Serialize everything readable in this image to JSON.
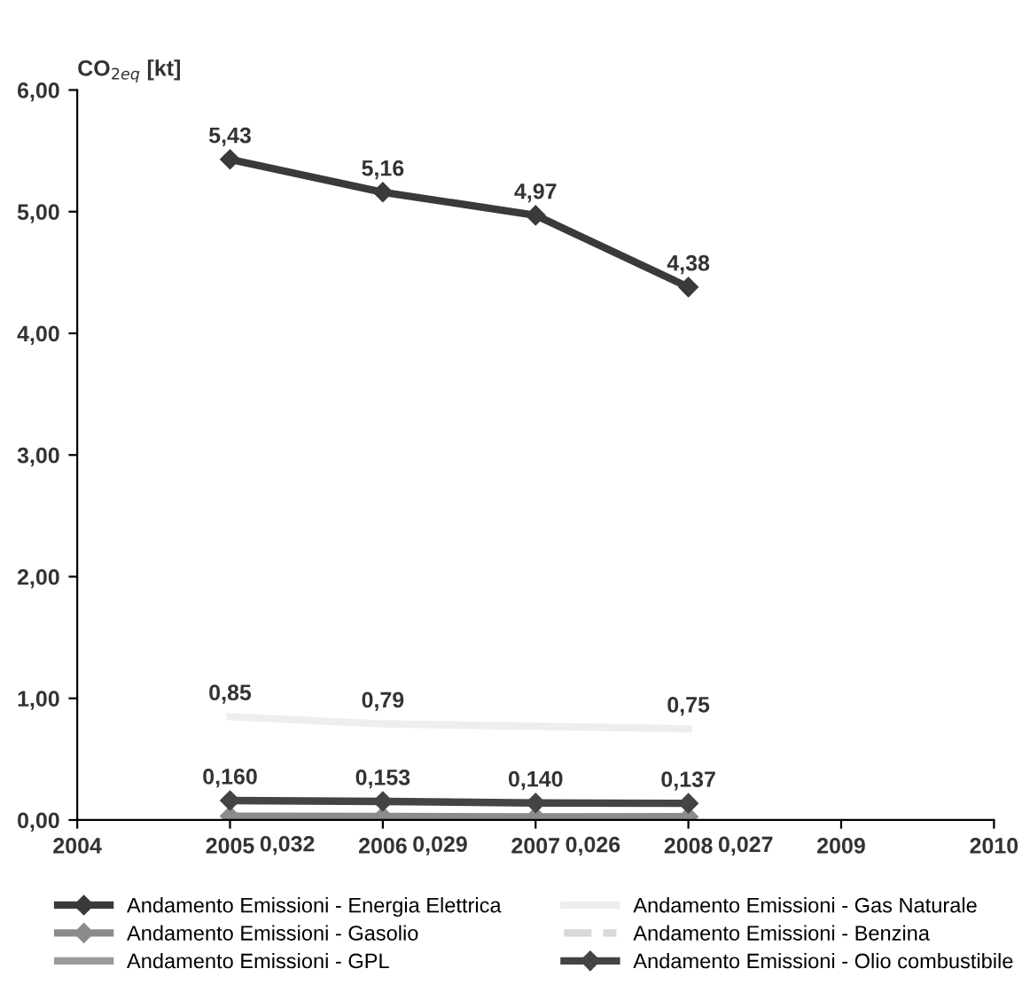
{
  "chart_data": {
    "type": "line",
    "ylabel": "CO$_{2eq}$ [kt]",
    "x": [
      2005,
      2006,
      2007,
      2008
    ],
    "xlim": [
      2004,
      2010
    ],
    "xticks": [
      2004,
      2005,
      2006,
      2007,
      2008,
      2009,
      2010
    ],
    "ylim": [
      0,
      6
    ],
    "yticks": [
      {
        "value": 0,
        "label": "0,00"
      },
      {
        "value": 1,
        "label": "1,00"
      },
      {
        "value": 2,
        "label": "2,00"
      },
      {
        "value": 3,
        "label": "3,00"
      },
      {
        "value": 4,
        "label": "4,00"
      },
      {
        "value": 5,
        "label": "5,00"
      },
      {
        "value": 6,
        "label": "6,00"
      }
    ],
    "grid": false,
    "legend": "bottom",
    "series": [
      {
        "name": "Andamento Emissioni - Energia Elettrica",
        "color": "#3a3a3a",
        "marker": "diamond",
        "values": [
          5.43,
          5.16,
          4.97,
          4.38
        ],
        "value_labels": [
          "5,43",
          "5,16",
          "4,97",
          "4,38"
        ]
      },
      {
        "name": "Andamento Emissioni - Gasolio",
        "color": "#8c8c8c",
        "marker": "diamond",
        "values": [
          0.032,
          0.029,
          0.026,
          0.027
        ],
        "value_labels": [
          "0,032",
          "0,029",
          "0,026",
          "0,027"
        ]
      },
      {
        "name": "Andamento Emissioni - GPL",
        "color": "#9a9a9a",
        "marker": "none",
        "values": [
          null,
          null,
          null,
          null
        ]
      },
      {
        "name": "Andamento Emissioni - Gas Naturale",
        "color": "#eeeeee",
        "marker": "none",
        "values": [
          0.85,
          0.79,
          0.77,
          0.75
        ],
        "value_labels": [
          "0,85",
          "0,79",
          null,
          "0,75"
        ]
      },
      {
        "name": "Andamento Emissioni - Benzina",
        "color": "#d8d8d8",
        "marker": "none",
        "line_style": "dashed",
        "values": [
          null,
          null,
          null,
          null
        ]
      },
      {
        "name": "Andamento Emissioni - Olio combustibile",
        "color": "#444444",
        "marker": "diamond",
        "values": [
          0.16,
          0.153,
          0.14,
          0.137
        ],
        "value_labels": [
          "0,160",
          "0,153",
          "0,140",
          "0,137"
        ]
      }
    ]
  }
}
